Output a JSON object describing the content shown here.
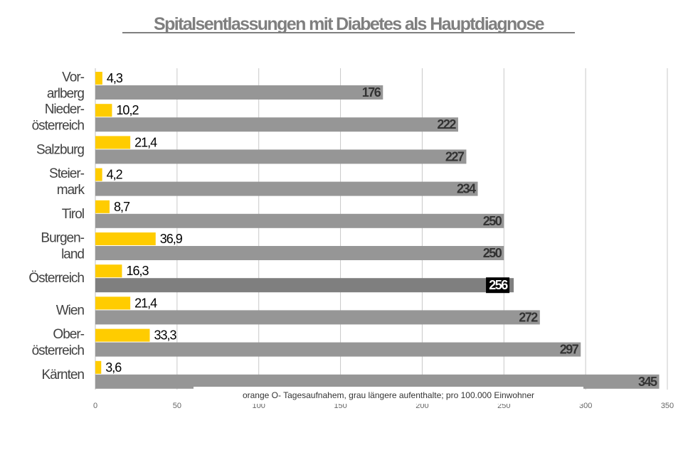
{
  "chart_data": {
    "type": "bar",
    "orientation": "horizontal",
    "title": "Spitalsentlassungen mit Diabetes als Hauptdiagnose",
    "categories": [
      [
        "Vor-",
        "arlberg"
      ],
      [
        "Nieder-",
        "österreich"
      ],
      [
        "Salzburg"
      ],
      [
        "Steier-",
        "mark"
      ],
      [
        "Tirol"
      ],
      [
        "Burgen-",
        "land"
      ],
      [
        "Österreich"
      ],
      [
        "Wien"
      ],
      [
        "Ober-",
        "österreich"
      ],
      [
        "Kärnten"
      ]
    ],
    "series": [
      {
        "values": [
          4.3,
          10.2,
          21.4,
          4.2,
          8.7,
          36.9,
          16.3,
          21.4,
          33.3,
          3.6
        ],
        "labels": [
          "4,3",
          "10,2",
          "21,4",
          "4,2",
          "8,7",
          "36,9",
          "16,3",
          "21,4",
          "33,3",
          "3,6"
        ],
        "color": "#ffcc00"
      },
      {
        "values": [
          176,
          222,
          227,
          234,
          250,
          250,
          256,
          272,
          297,
          345
        ],
        "labels": [
          "176",
          "222",
          "227",
          "234",
          "250",
          "250",
          "256",
          "272",
          "297",
          "345"
        ],
        "color": "#969696",
        "highlight_color": "#7f7f7f",
        "highlight_index": 6
      }
    ],
    "xlim": [
      0,
      350
    ],
    "xticks": [
      0,
      50,
      100,
      150,
      200,
      250,
      300,
      350
    ],
    "xtick_labels": [
      "0",
      "50",
      "100",
      "150",
      "200",
      "250",
      "300",
      "350"
    ],
    "grid": true,
    "note": "orange O- Tagesaufnahem, grau längere aufenthalte; pro 100.000 Einwohner"
  }
}
